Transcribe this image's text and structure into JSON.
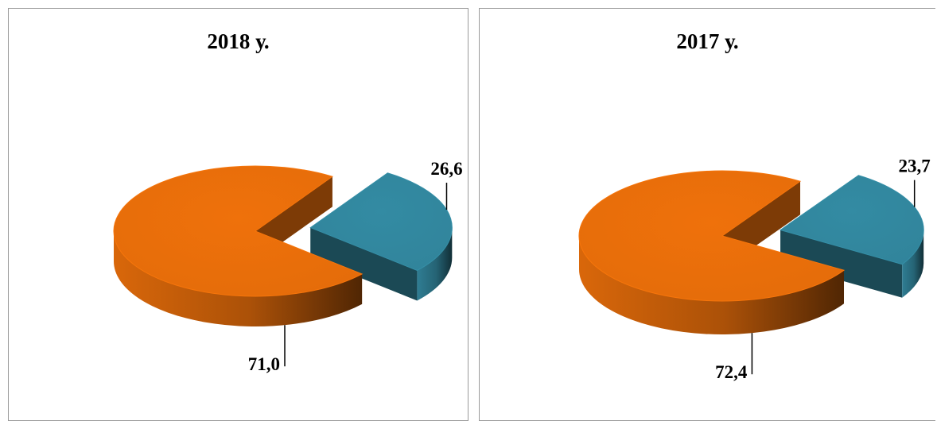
{
  "chart_data": [
    {
      "type": "pie",
      "title": "2018 у.",
      "slices": [
        {
          "value": 26.6,
          "label": "26,6",
          "color": "#31849b",
          "exploded": true
        },
        {
          "value": 71.0,
          "label": "71,0",
          "color": "#e46c0a",
          "exploded": false
        }
      ]
    },
    {
      "type": "pie",
      "title": "2017 у.",
      "slices": [
        {
          "value": 23.7,
          "label": "23,7",
          "color": "#31849b",
          "exploded": true
        },
        {
          "value": 72.4,
          "label": "72,4",
          "color": "#e46c0a",
          "exploded": false
        }
      ]
    }
  ]
}
